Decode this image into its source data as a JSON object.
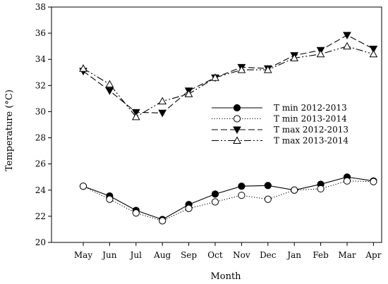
{
  "chart_data": {
    "type": "line",
    "title": "",
    "xlabel": "Month",
    "ylabel": "Temperature (°C)",
    "categories": [
      "May",
      "Jun",
      "Jul",
      "Aug",
      "Sep",
      "Oct",
      "Nov",
      "Dec",
      "Jan",
      "Feb",
      "Mar",
      "Apr"
    ],
    "ylim": [
      20,
      38
    ],
    "yticks": [
      20,
      22,
      24,
      26,
      28,
      30,
      32,
      34,
      36,
      38
    ],
    "grid": false,
    "legend_position": "center-right",
    "series": [
      {
        "name": "T min 2012-2013",
        "marker": "filled-circle",
        "line_style": "solid",
        "values": [
          24.3,
          23.55,
          22.45,
          21.75,
          22.9,
          23.7,
          24.3,
          24.35,
          24.0,
          24.45,
          25.0,
          24.7
        ]
      },
      {
        "name": "T min 2013-2014",
        "marker": "open-circle",
        "line_style": "dotted",
        "values": [
          24.3,
          23.3,
          22.25,
          21.65,
          22.6,
          23.1,
          23.6,
          23.3,
          24.0,
          24.1,
          24.7,
          24.65
        ]
      },
      {
        "name": "T max 2012-2013",
        "marker": "filled-triangle-down",
        "line_style": "dashed",
        "values": [
          33.1,
          31.6,
          29.95,
          29.9,
          31.6,
          32.6,
          33.4,
          33.3,
          34.3,
          34.7,
          35.85,
          34.8
        ]
      },
      {
        "name": "T max 2013-2014",
        "marker": "open-triangle-up",
        "line_style": "dash-dot-dot",
        "values": [
          33.3,
          32.1,
          29.6,
          30.8,
          31.35,
          32.6,
          33.2,
          33.2,
          34.1,
          34.4,
          35.0,
          34.4
        ]
      }
    ]
  }
}
